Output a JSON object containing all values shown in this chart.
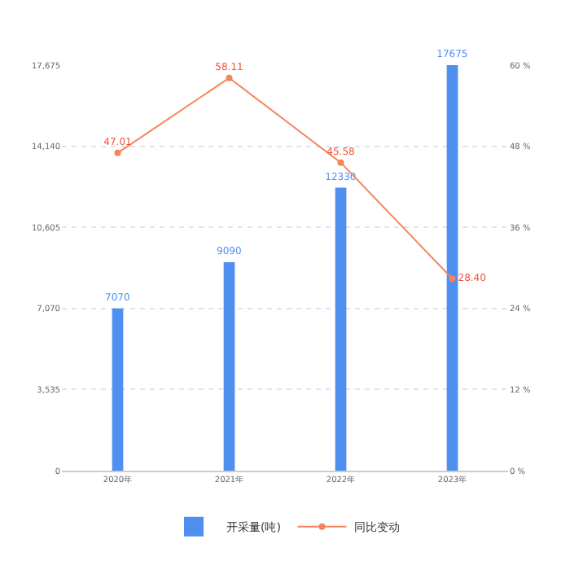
{
  "chart_data": {
    "type": "bar",
    "categories": [
      "2020年",
      "2021年",
      "2022年",
      "2023年"
    ],
    "series": [
      {
        "name": "开采量(吨)",
        "color": "#4f8ff0",
        "values": [
          7070,
          9090,
          12330,
          17675
        ],
        "value_labels": [
          "7070",
          "9090",
          "12330",
          "17675"
        ]
      },
      {
        "name": "同比变动",
        "type": "line",
        "axis": "y2",
        "color": "#f5845a",
        "values": [
          47.01,
          58.11,
          45.58,
          28.4
        ],
        "value_labels": [
          "47.01",
          "58.11",
          "45.58",
          "28.40"
        ],
        "marker": "circle"
      }
    ],
    "ylim": [
      0,
      17675
    ],
    "yticks": [
      0,
      {
        "value": 3535,
        "label": "3,535"
      },
      {
        "value": 7070,
        "label": "7,070"
      },
      {
        "value": 10605,
        "label": "10,605"
      },
      {
        "value": 14140,
        "label": "14,140"
      },
      {
        "value": 17675,
        "label": "17,675"
      }
    ],
    "y2lim": [
      0,
      60
    ],
    "y2ticks": [
      {
        "value": 0,
        "label": "0 %"
      },
      {
        "value": 12,
        "label": "12 %"
      },
      {
        "value": 24,
        "label": "24 %"
      },
      {
        "value": 36,
        "label": "36 %"
      },
      {
        "value": 48,
        "label": "48 %"
      },
      {
        "value": 60,
        "label": "60 %"
      }
    ],
    "grid": "y",
    "legend": "bottom"
  }
}
